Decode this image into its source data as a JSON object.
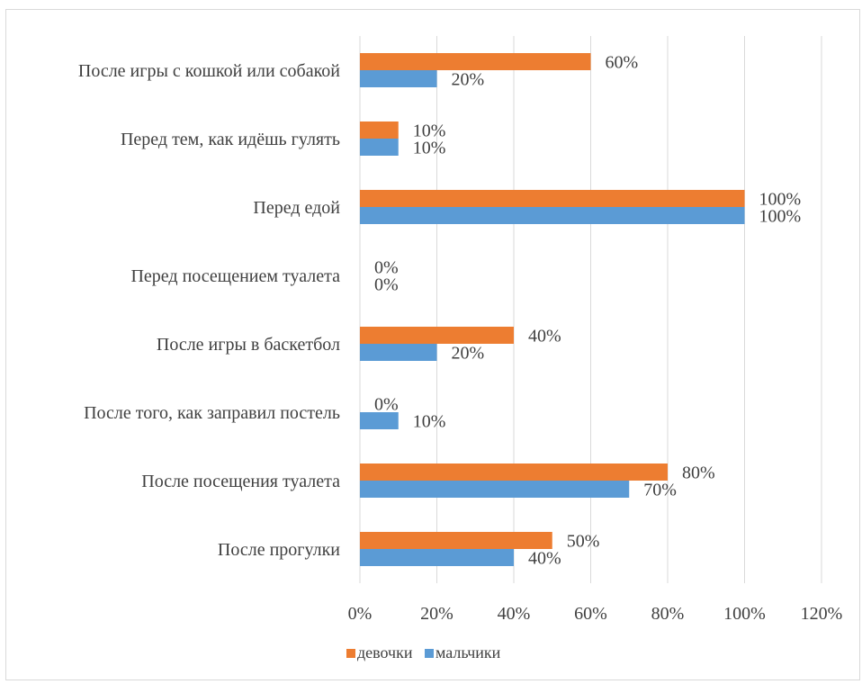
{
  "chart_data": {
    "type": "bar",
    "orientation": "horizontal",
    "title": "",
    "xlabel": "",
    "ylabel": "",
    "xlim": [
      0,
      120
    ],
    "x_ticks": [
      "0%",
      "20%",
      "40%",
      "60%",
      "80%",
      "100%",
      "120%"
    ],
    "x_tick_values": [
      0,
      20,
      40,
      60,
      80,
      100,
      120
    ],
    "grid": "vertical",
    "legend_position": "bottom",
    "categories": [
      "После игры с кошкой или собакой",
      "Перед тем, как идёшь гулять",
      "Перед едой",
      "Перед посещением туалета",
      "После игры в баскетбол",
      "После того, как заправил постель",
      "После посещения туалета",
      "После прогулки"
    ],
    "series": [
      {
        "name": "девочки",
        "color": "#ED7D31",
        "values": [
          60,
          10,
          100,
          0,
          40,
          0,
          80,
          50
        ],
        "labels": [
          "60%",
          "10%",
          "100%",
          "0%",
          "40%",
          "0%",
          "80%",
          "50%"
        ]
      },
      {
        "name": "мальчики",
        "color": "#5B9BD5",
        "values": [
          20,
          10,
          100,
          0,
          20,
          10,
          70,
          40
        ],
        "labels": [
          "20%",
          "10%",
          "100%",
          "0%",
          "20%",
          "10%",
          "70%",
          "40%"
        ]
      }
    ]
  }
}
